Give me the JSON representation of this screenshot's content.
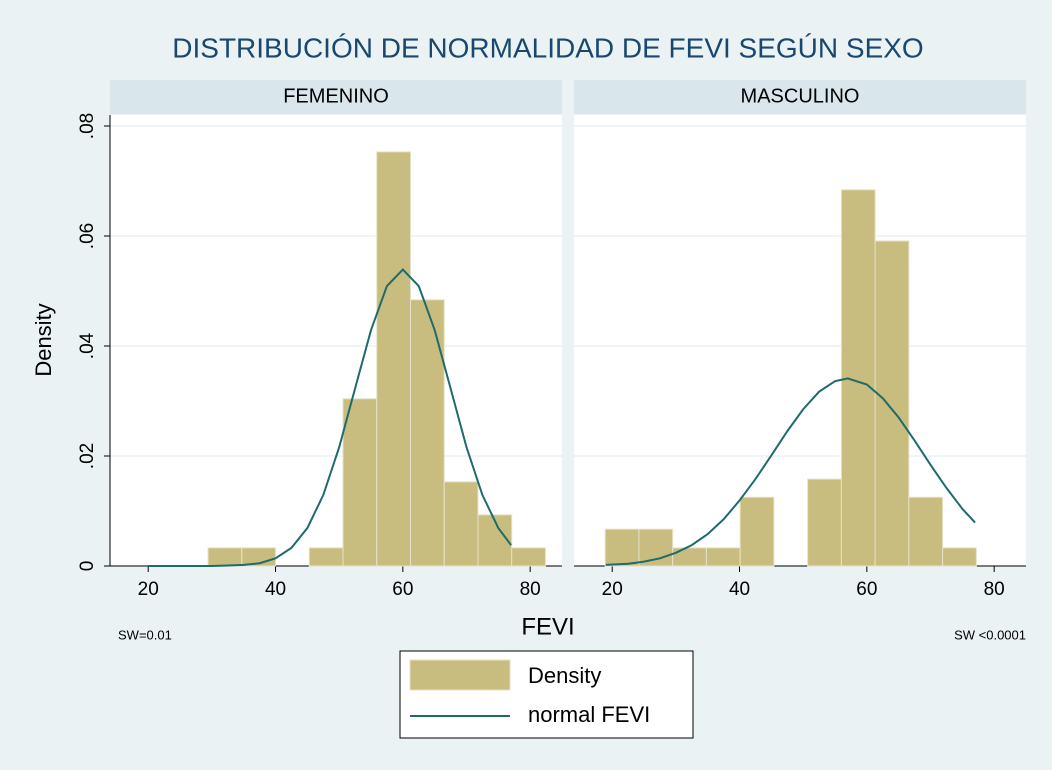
{
  "chart_data": {
    "type": "histogram",
    "title": "DISTRIBUCIÓN DE NORMALIDAD DE FEVI SEGÚN SEXO",
    "xlabel": "FEVI",
    "ylabel": "Density",
    "xlim": [
      14,
      85
    ],
    "xticks": [
      20,
      40,
      60,
      80
    ],
    "ylim": [
      0,
      0.082
    ],
    "yticks": [
      0,
      {
        "value": 0.02,
        "label": ".02"
      },
      {
        "value": 0.04,
        "label": ".04"
      },
      {
        "value": 0.06,
        "label": ".06"
      },
      {
        "value": 0.08,
        "label": ".08"
      }
    ],
    "grid": true,
    "legend": "bottom",
    "panels": [
      {
        "title": "FEMENINO",
        "note": "SW=0.01",
        "series": [
          {
            "name": "Density",
            "color": "#c8bd7e",
            "bins": [
              29.4,
              34.7,
              40.0,
              45.3,
              50.6,
              55.9,
              61.2,
              66.5,
              71.8,
              77.1,
              82.4
            ],
            "values": [
              0.0033,
              0.0033,
              0,
              0.0033,
              0.0304,
              0.0753,
              0.0484,
              0.0153,
              0.0093,
              0.0033
            ]
          },
          {
            "name": "normal FEVI",
            "color": "#1f6b6b",
            "x": [
              20,
              22.5,
              25,
              27.5,
              30,
              32.5,
              35,
              37.5,
              40,
              42.5,
              45,
              47.5,
              50,
              52.5,
              55,
              57.5,
              60,
              62.5,
              65,
              67.5,
              70,
              72.5,
              75,
              77
            ],
            "values": [
              0,
              0,
              0,
              0,
              0,
              0.0001,
              0.0002,
              0.0005,
              0.0014,
              0.0033,
              0.0069,
              0.0129,
              0.0216,
              0.0323,
              0.0429,
              0.0509,
              0.0539,
              0.0509,
              0.0429,
              0.0323,
              0.0216,
              0.0129,
              0.0069,
              0.0038
            ]
          }
        ]
      },
      {
        "title": "MASCULINO",
        "note": "SW <0.0001",
        "series": [
          {
            "name": "Density",
            "color": "#c8bd7e",
            "bins": [
              18.9,
              24.2,
              29.5,
              34.8,
              40.1,
              45.4,
              50.7,
              56.0,
              61.3,
              66.6,
              71.9,
              77.2
            ],
            "values": [
              0.0067,
              0.0067,
              0.0033,
              0.0033,
              0.0125,
              0,
              0.0158,
              0.0684,
              0.0591,
              0.0125,
              0.0033
            ]
          },
          {
            "name": "normal FEVI",
            "color": "#1f6b6b",
            "x": [
              19,
              22.5,
              25,
              27.5,
              30,
              32.5,
              35,
              37.5,
              40,
              42.5,
              45,
              47.5,
              50,
              52.5,
              55,
              57,
              60,
              62.5,
              65,
              67.5,
              70,
              72.5,
              75,
              77
            ],
            "values": [
              0.0002,
              0.0004,
              0.0008,
              0.0014,
              0.0024,
              0.0038,
              0.0058,
              0.0085,
              0.0119,
              0.0158,
              0.0201,
              0.0245,
              0.0285,
              0.0317,
              0.0336,
              0.0341,
              0.033,
              0.0305,
              0.027,
              0.0228,
              0.0184,
              0.0142,
              0.0104,
              0.0079
            ]
          }
        ]
      }
    ]
  }
}
